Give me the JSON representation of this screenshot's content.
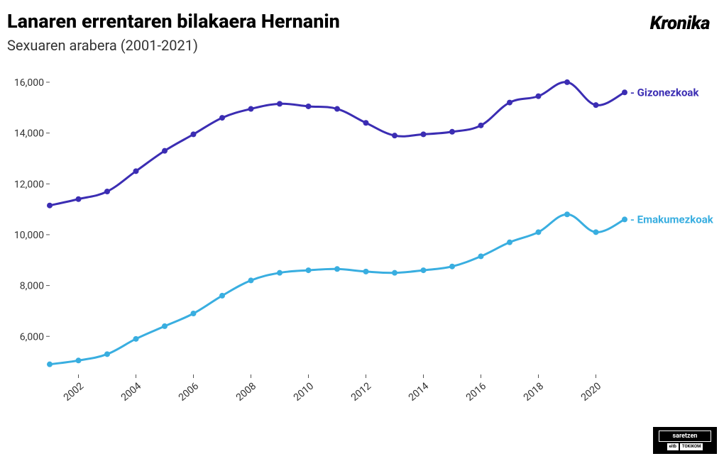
{
  "title": "Lanaren errentaren bilakaera Hernanin",
  "subtitle": "Sexuaren arabera (2001-2021)",
  "brand": "Kronika",
  "footer": {
    "top": "saretzen",
    "b1": "eitb",
    "b2": "TOKIKOM"
  },
  "chart": {
    "type": "line",
    "background_color": "#ffffff",
    "title_fontsize": 27,
    "subtitle_fontsize": 20,
    "brand_fontsize": 26,
    "line_width": 3,
    "marker_radius": 4,
    "axis_font_size": 14,
    "series_label_fontsize": 15,
    "years": [
      2001,
      2002,
      2003,
      2004,
      2005,
      2006,
      2007,
      2008,
      2009,
      2010,
      2011,
      2012,
      2013,
      2014,
      2015,
      2016,
      2017,
      2018,
      2019,
      2020,
      2021
    ],
    "x_ticks": [
      2002,
      2004,
      2006,
      2008,
      2010,
      2012,
      2014,
      2016,
      2018,
      2020
    ],
    "y_ticks": [
      6000,
      8000,
      10000,
      12000,
      14000,
      16000
    ],
    "ylim": [
      4500,
      16500
    ],
    "xlim": [
      2001,
      2021
    ],
    "axis_color": "#555555",
    "grid_color": "#ffffff",
    "series": [
      {
        "name": "Gizonezkoak",
        "color": "#3b2db3",
        "values": [
          11150,
          11400,
          11700,
          12500,
          13300,
          13950,
          14600,
          14950,
          15150,
          15050,
          14950,
          14400,
          13900,
          13950,
          14050,
          14300,
          15200,
          15450,
          16000,
          15100,
          15600
        ]
      },
      {
        "name": "Emakumezkoak",
        "color": "#39aee0",
        "values": [
          4900,
          5050,
          5300,
          5900,
          6400,
          6900,
          7600,
          8200,
          8500,
          8600,
          8650,
          8550,
          8500,
          8600,
          8750,
          9150,
          9700,
          10100,
          10800,
          10100,
          10600
        ]
      }
    ]
  }
}
